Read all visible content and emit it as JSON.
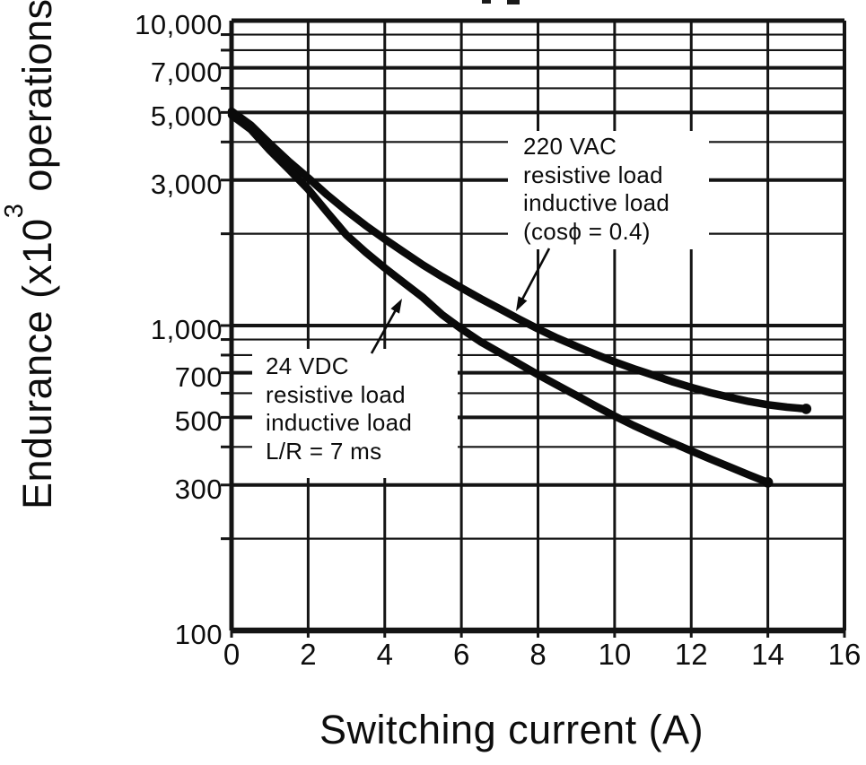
{
  "figure": {
    "background": "#ffffff",
    "ink_color": "#111111"
  },
  "chart_data": {
    "type": "line",
    "title": "",
    "xlabel": "Switching current (A)",
    "ylabel": "Endurance (x10³ operations)",
    "ylabel_parts": {
      "prefix": "Endurance (x10",
      "superscript": "3",
      "suffix": " operations)"
    },
    "x_axis": {
      "min": 0,
      "max": 16,
      "ticks": [
        0,
        2,
        4,
        6,
        8,
        10,
        12,
        14,
        16
      ],
      "tick_labels": [
        "0",
        "2",
        "4",
        "6",
        "8",
        "10",
        "12",
        "14",
        "16"
      ]
    },
    "y_axis": {
      "scale": "log",
      "min": 100,
      "max": 10000,
      "labeled_ticks": [
        {
          "value": 10000,
          "label": "10,000"
        },
        {
          "value": 7000,
          "label": "7,000"
        },
        {
          "value": 5000,
          "label": "5,000"
        },
        {
          "value": 3000,
          "label": "3,000"
        },
        {
          "value": 1000,
          "label": "1,000"
        },
        {
          "value": 700,
          "label": "700"
        },
        {
          "value": 500,
          "label": "500"
        },
        {
          "value": 300,
          "label": "300"
        },
        {
          "value": 100,
          "label": "100"
        }
      ],
      "minor_gridlines": [
        9000,
        8000,
        6000,
        4000,
        2000,
        900,
        800,
        600,
        400,
        200
      ]
    },
    "grid": true,
    "legend_position": "inline-annotations",
    "series": [
      {
        "name": "220 VAC resistive load / inductive load (cosϕ = 0.4)",
        "label_lines": [
          "220 VAC",
          "resistive load",
          "inductive load",
          "(cosϕ = 0.4)"
        ],
        "points": [
          [
            0,
            5050
          ],
          [
            0.5,
            4550
          ],
          [
            1,
            3950
          ],
          [
            1.5,
            3450
          ],
          [
            2,
            3050
          ],
          [
            2.5,
            2680
          ],
          [
            3,
            2380
          ],
          [
            3.5,
            2130
          ],
          [
            4,
            1920
          ],
          [
            4.5,
            1740
          ],
          [
            5,
            1580
          ],
          [
            5.5,
            1445
          ],
          [
            6,
            1330
          ],
          [
            6.5,
            1225
          ],
          [
            7,
            1135
          ],
          [
            7.5,
            1050
          ],
          [
            8,
            975
          ],
          [
            8.5,
            910
          ],
          [
            9,
            855
          ],
          [
            9.5,
            805
          ],
          [
            10,
            760
          ],
          [
            10.5,
            722
          ],
          [
            11,
            688
          ],
          [
            11.5,
            655
          ],
          [
            12,
            627
          ],
          [
            12.5,
            602
          ],
          [
            13,
            582
          ],
          [
            13.5,
            564
          ],
          [
            14,
            550
          ],
          [
            14.5,
            540
          ],
          [
            15,
            533
          ]
        ]
      },
      {
        "name": "24 VDC resistive load / inductive load L/R = 7 ms",
        "label_lines": [
          "24 VDC",
          "resistive load",
          "inductive load",
          "L/R = 7 ms"
        ],
        "points": [
          [
            0,
            4900
          ],
          [
            0.5,
            4400
          ],
          [
            1,
            3750
          ],
          [
            1.5,
            3250
          ],
          [
            2,
            2800
          ],
          [
            2.5,
            2350
          ],
          [
            3,
            1980
          ],
          [
            3.5,
            1740
          ],
          [
            4,
            1545
          ],
          [
            4.5,
            1380
          ],
          [
            5,
            1235
          ],
          [
            5.5,
            1085
          ],
          [
            6,
            975
          ],
          [
            6.5,
            885
          ],
          [
            7,
            815
          ],
          [
            7.5,
            750
          ],
          [
            8,
            690
          ],
          [
            8.5,
            638
          ],
          [
            9,
            590
          ],
          [
            9.5,
            545
          ],
          [
            10,
            505
          ],
          [
            10.5,
            470
          ],
          [
            11,
            440
          ],
          [
            11.5,
            413
          ],
          [
            12,
            388
          ],
          [
            12.5,
            365
          ],
          [
            13,
            344
          ],
          [
            13.5,
            324
          ],
          [
            14,
            306
          ]
        ]
      }
    ]
  }
}
